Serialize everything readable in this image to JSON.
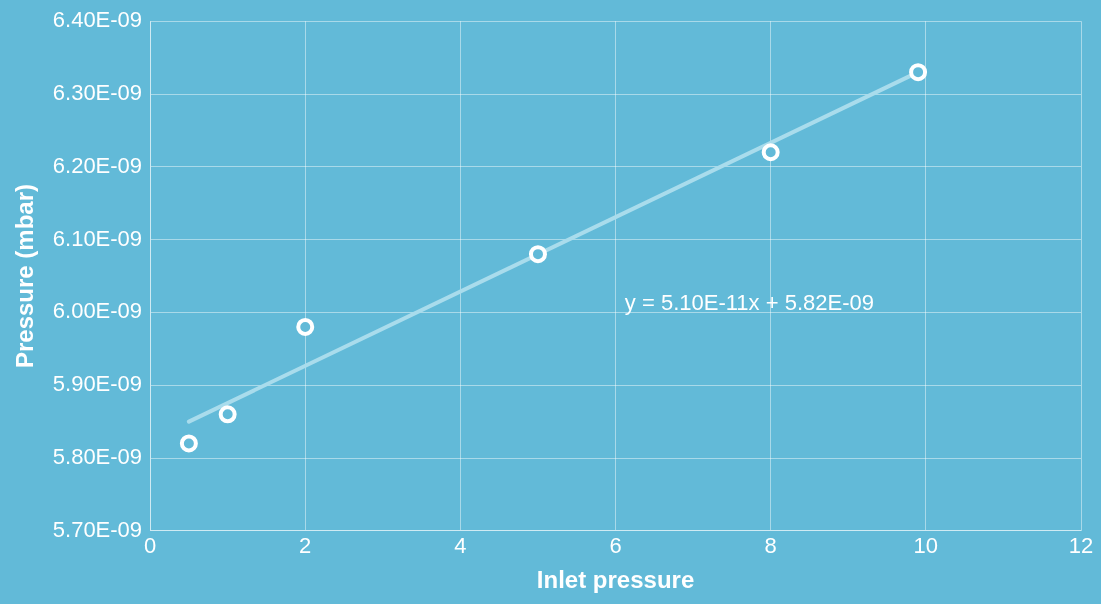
{
  "chart_data": {
    "type": "scatter",
    "xlabel": "Inlet pressure",
    "ylabel": "Pressure (mbar)",
    "xlim": [
      0,
      12
    ],
    "xticks": [
      0,
      2,
      4,
      6,
      8,
      10,
      12
    ],
    "ylim": [
      5.7e-09,
      6.4e-09
    ],
    "yticks": [
      {
        "value": 5.7e-09,
        "label": "5.70E-09"
      },
      {
        "value": 5.8e-09,
        "label": "5.80E-09"
      },
      {
        "value": 5.9e-09,
        "label": "5.90E-09"
      },
      {
        "value": 6e-09,
        "label": "6.00E-09"
      },
      {
        "value": 6.1e-09,
        "label": "6.10E-09"
      },
      {
        "value": 6.2e-09,
        "label": "6.20E-09"
      },
      {
        "value": 6.3e-09,
        "label": "6.30E-09"
      },
      {
        "value": 6.4e-09,
        "label": "6.40E-09"
      }
    ],
    "grid": true,
    "legend": false,
    "series": [
      {
        "marker": "circle",
        "color": "#ffffff",
        "x": [
          0.5,
          1,
          2,
          5,
          8,
          9.9
        ],
        "values": [
          5.82e-09,
          5.86e-09,
          5.98e-09,
          6.08e-09,
          6.22e-09,
          6.33e-09
        ]
      },
      {
        "type": "line",
        "marker": "none",
        "color": "#a9dcec",
        "x": [
          0.5,
          9.9
        ],
        "values": [
          5.85e-09,
          6.33e-09
        ]
      }
    ],
    "annotations": [
      "y = 5.10E-11x + 5.82E-09"
    ]
  }
}
